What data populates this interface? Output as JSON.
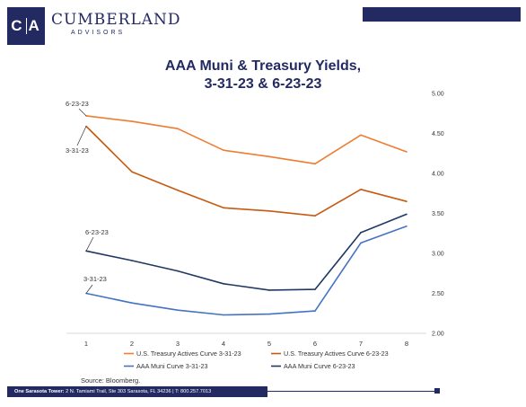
{
  "brand": {
    "mark_left": "C",
    "mark_right": "A",
    "name": "CUMBERLAND",
    "sub": "ADVISORS"
  },
  "footer": {
    "address_label": "One Sarasota Tower:",
    "address": " 2 N. Tamiami Trail, Ste 303  Sarasota, FL 34236   |   T: 800.257.7013"
  },
  "source": "Source: Bloomberg.",
  "colors": {
    "brand": "#232a62",
    "treasury": "#c55a11",
    "treasury_light": "#ed7d31",
    "muni": "#203864",
    "muni_light": "#4472c4"
  },
  "chart_data": {
    "type": "line",
    "title": "AAA Muni & Treasury Yields,",
    "subtitle": "3-31-23 & 6-23-23",
    "x": [
      1,
      2,
      3,
      4,
      5,
      6,
      7,
      8
    ],
    "ylim": [
      2.0,
      5.0
    ],
    "yticks": [
      "5.00",
      "4.50",
      "4.00",
      "3.50",
      "3.00",
      "2.50",
      "2.00"
    ],
    "grid": false,
    "legend_position": "bottom",
    "series": [
      {
        "name": "U.S. Treasury Actives Curve 3-31-23",
        "color": "#ed7d31",
        "values": [
          4.72,
          4.65,
          4.56,
          4.29,
          4.21,
          4.12,
          4.48,
          4.27
        ]
      },
      {
        "name": "U.S. Treasury Actives Curve 6-23-23",
        "color": "#c55a11",
        "values": [
          4.59,
          4.02,
          3.79,
          3.57,
          3.53,
          3.47,
          3.8,
          3.65
        ]
      },
      {
        "name": "AAA Muni Curve 3-31-23",
        "color": "#4472c4",
        "values": [
          2.5,
          2.38,
          2.29,
          2.23,
          2.24,
          2.28,
          3.13,
          3.34
        ]
      },
      {
        "name": "AAA Muni Curve 6-23-23",
        "color": "#203864",
        "values": [
          3.03,
          2.91,
          2.78,
          2.62,
          2.54,
          2.55,
          3.26,
          3.49
        ]
      }
    ],
    "annotations": [
      "6-23-23",
      "3-31-23",
      "6-23-23",
      "3-31-23"
    ]
  }
}
